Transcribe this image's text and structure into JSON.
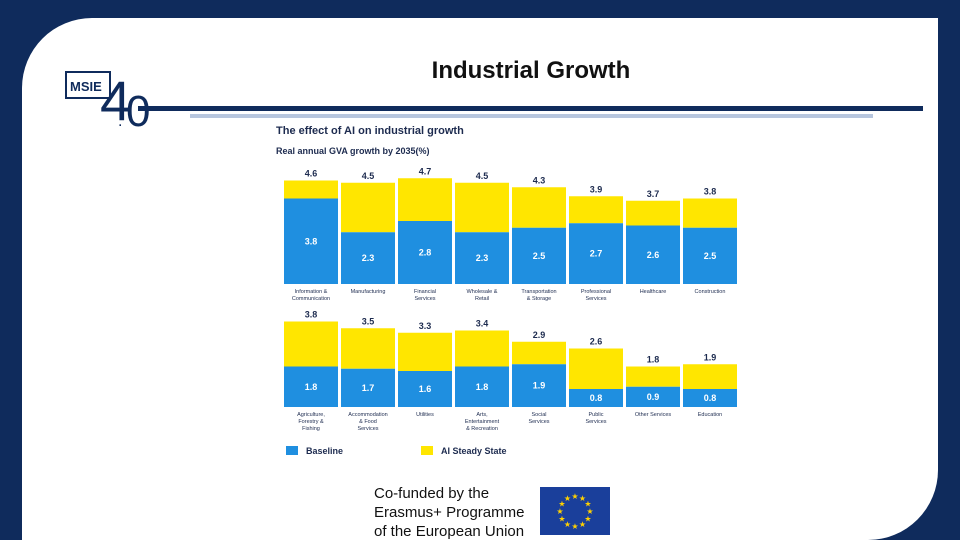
{
  "slide": {
    "title": "Industrial Growth",
    "logo_text_top": "MSIE",
    "logo_digit_four": "4",
    "logo_dot": ".",
    "logo_digit_zero": "0",
    "funding_text": "Co-funded by the\nErasmus+ Programme\nof the European Union"
  },
  "colors": {
    "baseline": "#1f8fe0",
    "ai": "#ffe600",
    "navy": "#0f2b5c"
  },
  "chart_data": {
    "type": "bar",
    "title": "The effect of AI on industrial growth",
    "subtitle": "Real annual GVA growth by 2035(%)",
    "stacked": true,
    "legend": [
      "Baseline",
      "AI Steady State"
    ],
    "legend_position": "bottom-left",
    "panels": [
      {
        "categories": [
          "Information & Communication",
          "Manufacturing",
          "Financial Services",
          "Wholesale & Retail",
          "Transportation & Storage",
          "Professional Services",
          "Healthcare",
          "Construction"
        ],
        "baseline": [
          3.8,
          2.3,
          2.8,
          2.3,
          2.5,
          2.7,
          2.6,
          2.5
        ],
        "ai_steady_state": [
          4.6,
          4.5,
          4.7,
          4.5,
          4.3,
          3.9,
          3.7,
          3.8
        ]
      },
      {
        "categories": [
          "Agriculture, Forestry & Fishing",
          "Accommodation & Food Services",
          "Utilities",
          "Arts, Entertainment & Recreation",
          "Social Services",
          "Public Services",
          "Other Services",
          "Education"
        ],
        "baseline": [
          1.8,
          1.7,
          1.6,
          1.8,
          1.9,
          0.8,
          0.9,
          0.8
        ],
        "ai_steady_state": [
          3.8,
          3.5,
          3.3,
          3.4,
          2.9,
          2.6,
          1.8,
          1.9
        ]
      }
    ]
  }
}
